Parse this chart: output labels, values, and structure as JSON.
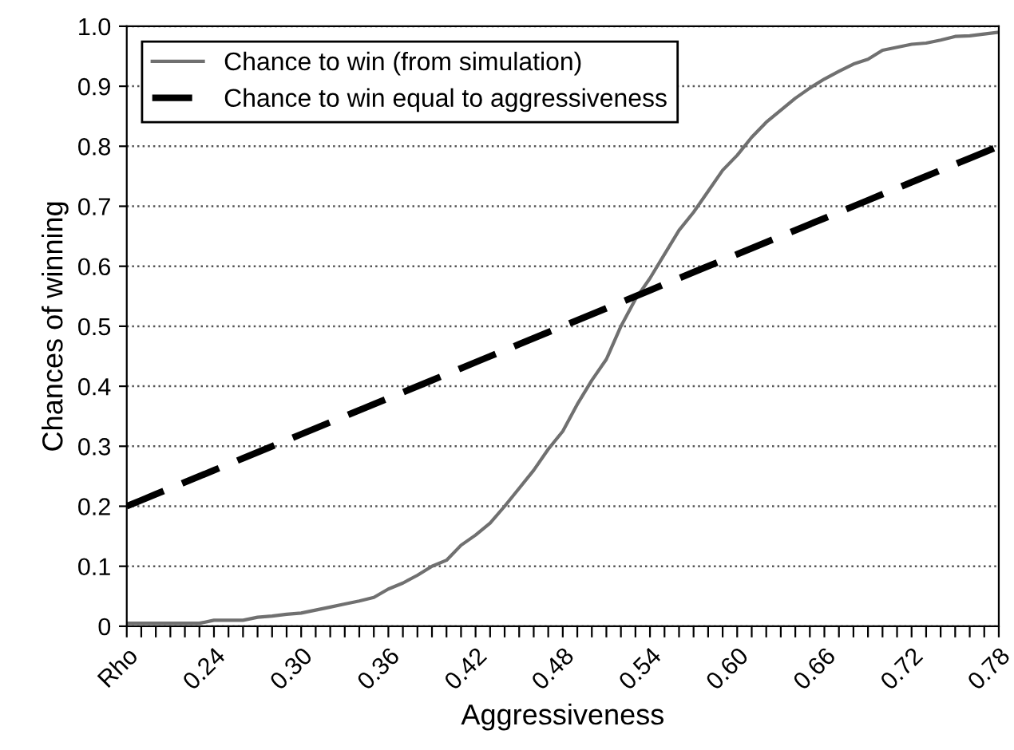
{
  "chart_data": {
    "type": "line",
    "xlabel": "Aggressiveness",
    "ylabel": "Chances of winning",
    "categories": [
      "Rho",
      null,
      null,
      null,
      null,
      null,
      "0.24",
      null,
      null,
      null,
      null,
      null,
      "0.30",
      null,
      null,
      null,
      null,
      null,
      "0.36",
      null,
      null,
      null,
      null,
      null,
      "0.42",
      null,
      null,
      null,
      null,
      null,
      "0.48",
      null,
      null,
      null,
      null,
      null,
      "0.54",
      null,
      null,
      null,
      null,
      null,
      "0.60",
      null,
      null,
      null,
      null,
      null,
      "0.66",
      null,
      null,
      null,
      null,
      null,
      "0.72",
      null,
      null,
      null,
      null,
      null,
      "0.78"
    ],
    "series": [
      {
        "name": "Chance to win (from simulation)",
        "color": "#707070",
        "line_style": "solid",
        "values": [
          0.005,
          0.005,
          0.005,
          0.005,
          0.005,
          0.005,
          0.01,
          0.01,
          0.01,
          0.015,
          0.017,
          0.02,
          0.022,
          0.027,
          0.032,
          0.037,
          0.042,
          0.048,
          0.062,
          0.072,
          0.085,
          0.1,
          0.11,
          0.135,
          0.152,
          0.172,
          0.2,
          0.23,
          0.26,
          0.295,
          0.325,
          0.37,
          0.41,
          0.445,
          0.5,
          0.545,
          0.58,
          0.62,
          0.66,
          0.69,
          0.725,
          0.76,
          0.785,
          0.815,
          0.84,
          0.86,
          0.88,
          0.897,
          0.912,
          0.925,
          0.937,
          0.945,
          0.96,
          0.965,
          0.97,
          0.972,
          0.977,
          0.983,
          0.984,
          0.987,
          0.99
        ]
      },
      {
        "name": "Chance to win equal to aggressiveness",
        "color": "#000000",
        "line_style": "dashed",
        "values": [
          0.2,
          0.21,
          0.22,
          0.23,
          0.24,
          0.25,
          0.26,
          0.27,
          0.28,
          0.29,
          0.3,
          0.31,
          0.32,
          0.33,
          0.34,
          0.35,
          0.36,
          0.37,
          0.38,
          0.39,
          0.4,
          0.41,
          0.42,
          0.43,
          0.44,
          0.45,
          0.46,
          0.47,
          0.48,
          0.49,
          0.5,
          0.51,
          0.52,
          0.53,
          0.54,
          0.55,
          0.56,
          0.57,
          0.58,
          0.59,
          0.6,
          0.61,
          0.62,
          0.63,
          0.64,
          0.65,
          0.66,
          0.67,
          0.68,
          0.69,
          0.7,
          0.71,
          0.72,
          0.73,
          0.74,
          0.75,
          0.76,
          0.77,
          0.78,
          0.79,
          0.8
        ]
      }
    ],
    "ylim": [
      0,
      1.0
    ],
    "yticks": [
      0,
      {
        "value": 0.1,
        "label": "0.1"
      },
      {
        "value": 0.2,
        "label": "0.2"
      },
      {
        "value": 0.3,
        "label": "0.3"
      },
      {
        "value": 0.4,
        "label": "0.4"
      },
      {
        "value": 0.5,
        "label": "0.5"
      },
      {
        "value": 0.6,
        "label": "0.6"
      },
      {
        "value": 0.7,
        "label": "0.7"
      },
      {
        "value": 0.8,
        "label": "0.8"
      },
      {
        "value": 0.9,
        "label": "0.9"
      },
      {
        "value": 1.0,
        "label": "1.0"
      }
    ],
    "grid": "y",
    "legend": "top left",
    "marker": "none"
  }
}
